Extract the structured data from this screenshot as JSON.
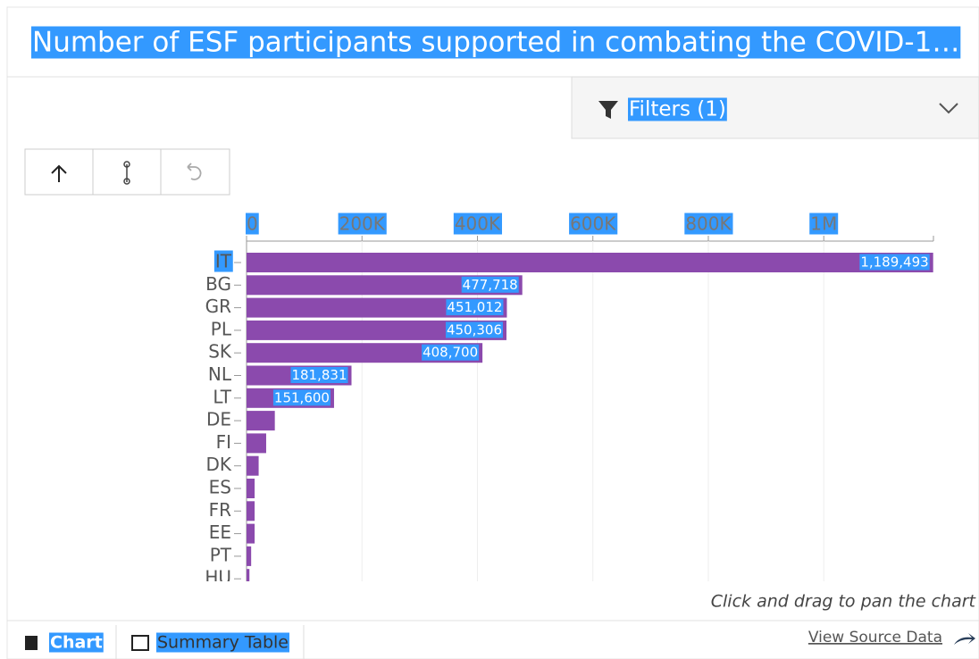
{
  "title": "Number of ESF participants supported in combating the COVID-1…",
  "filters": {
    "label": "Filters (1)"
  },
  "chart_data": {
    "type": "bar",
    "orientation": "horizontal",
    "categories": [
      "IT",
      "BG",
      "GR",
      "PL",
      "SK",
      "NL",
      "LT",
      "DE",
      "FI",
      "DK",
      "ES",
      "FR",
      "EE",
      "PT",
      "HU"
    ],
    "values": [
      1189493,
      477718,
      451012,
      450306,
      408700,
      181831,
      151600,
      49000,
      34000,
      21000,
      14000,
      14000,
      14000,
      8000,
      5000
    ],
    "value_labels": [
      "1,189,493",
      "477,718",
      "451,012",
      "450,306",
      "408,700",
      "181,831",
      "151,600",
      null,
      null,
      null,
      null,
      null,
      null,
      null,
      null
    ],
    "color": "#8b4aad",
    "xlim": [
      0,
      1190000
    ],
    "xticks": [
      0,
      {
        "value": 200000,
        "label": "200K"
      },
      {
        "value": 400000,
        "label": "400K"
      },
      {
        "value": 600000,
        "label": "600K"
      },
      {
        "value": 800000,
        "label": "800K"
      },
      {
        "value": 1000000,
        "label": "1M"
      }
    ],
    "grid": true
  },
  "hint": "Click and drag to pan the chart",
  "tabs": [
    "Chart",
    "Summary Table"
  ],
  "source_link": "View Source Data"
}
